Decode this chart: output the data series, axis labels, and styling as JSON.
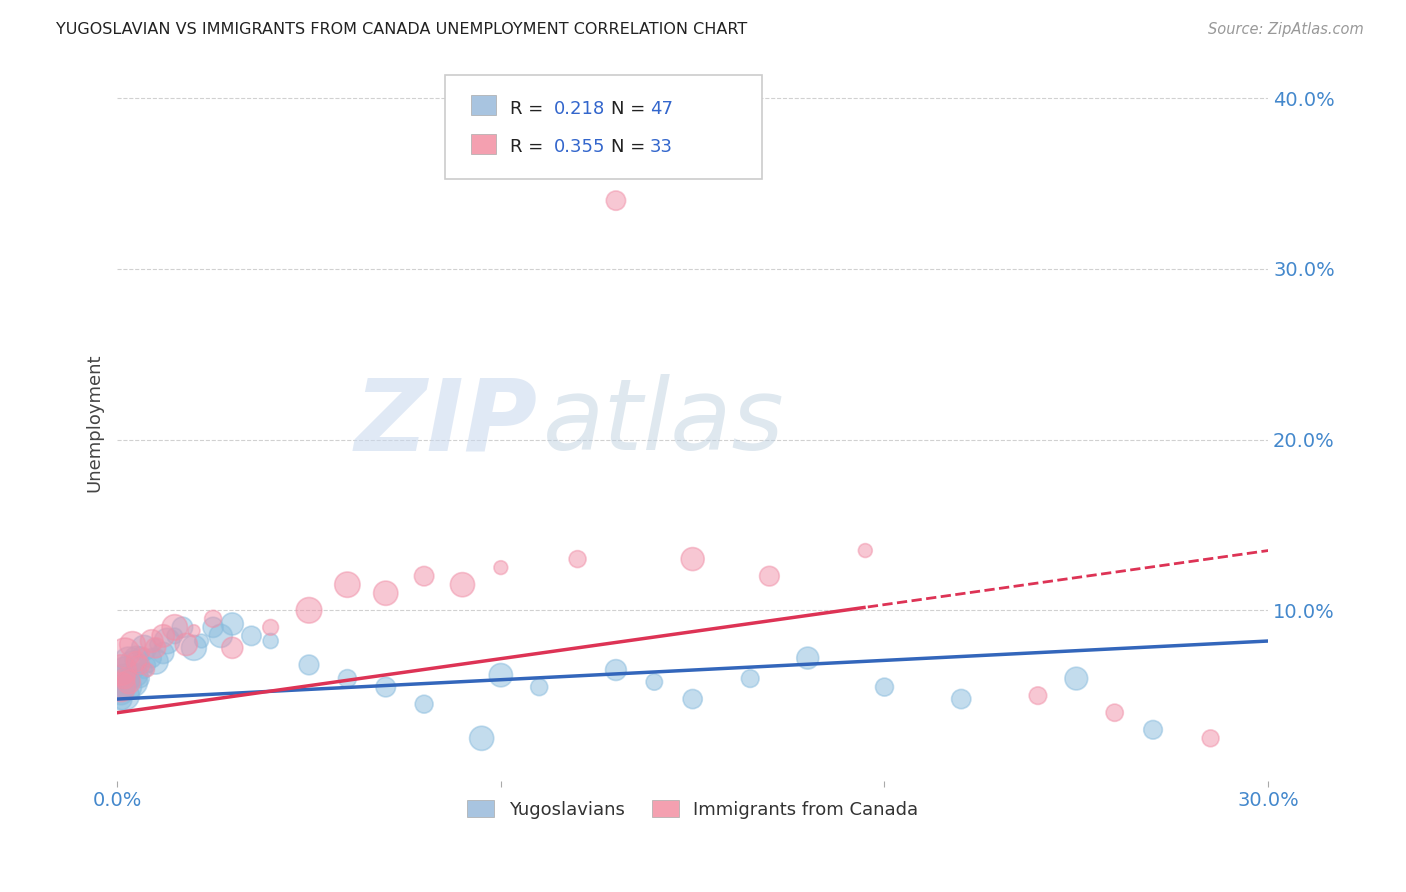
{
  "title": "YUGOSLAVIAN VS IMMIGRANTS FROM CANADA UNEMPLOYMENT CORRELATION CHART",
  "source": "Source: ZipAtlas.com",
  "xlim": [
    0.0,
    0.3
  ],
  "ylim": [
    0.0,
    0.42
  ],
  "watermark_zip": "ZIP",
  "watermark_atlas": "atlas",
  "legend_entries": [
    {
      "color": "#a8c4e0",
      "R": "0.218",
      "N": "47"
    },
    {
      "color": "#f4a0b0",
      "R": "0.355",
      "N": "33"
    }
  ],
  "legend_labels": [
    "Yugoslavians",
    "Immigrants from Canada"
  ],
  "blue_scatter_color": "#88bbdd",
  "pink_scatter_color": "#f090a8",
  "blue_line_color": "#3366bb",
  "pink_line_color": "#dd3355",
  "axis_color": "#4488cc",
  "grid_color": "#cccccc",
  "title_color": "#222222",
  "source_color": "#999999",
  "ylabel_color": "#444444",
  "R_N_color": "#3366cc",
  "pink_cutoff": 0.195,
  "yug_x": [
    0.001,
    0.001,
    0.001,
    0.002,
    0.002,
    0.002,
    0.003,
    0.003,
    0.004,
    0.004,
    0.005,
    0.005,
    0.006,
    0.006,
    0.007,
    0.007,
    0.008,
    0.009,
    0.01,
    0.01,
    0.012,
    0.013,
    0.015,
    0.017,
    0.02,
    0.022,
    0.025,
    0.027,
    0.03,
    0.035,
    0.04,
    0.05,
    0.06,
    0.07,
    0.08,
    0.095,
    0.1,
    0.11,
    0.13,
    0.14,
    0.15,
    0.165,
    0.18,
    0.2,
    0.22,
    0.25,
    0.27
  ],
  "yug_y": [
    0.048,
    0.052,
    0.055,
    0.05,
    0.06,
    0.065,
    0.055,
    0.07,
    0.058,
    0.068,
    0.062,
    0.072,
    0.06,
    0.075,
    0.065,
    0.078,
    0.068,
    0.072,
    0.07,
    0.08,
    0.075,
    0.082,
    0.085,
    0.09,
    0.078,
    0.082,
    0.09,
    0.085,
    0.092,
    0.085,
    0.082,
    0.068,
    0.06,
    0.055,
    0.045,
    0.025,
    0.062,
    0.055,
    0.065,
    0.058,
    0.048,
    0.06,
    0.072,
    0.055,
    0.048,
    0.06,
    0.03
  ],
  "imm_x": [
    0.001,
    0.001,
    0.002,
    0.002,
    0.003,
    0.004,
    0.005,
    0.006,
    0.007,
    0.008,
    0.009,
    0.01,
    0.012,
    0.015,
    0.018,
    0.02,
    0.025,
    0.03,
    0.04,
    0.05,
    0.06,
    0.07,
    0.08,
    0.09,
    0.1,
    0.12,
    0.13,
    0.15,
    0.17,
    0.195,
    0.24,
    0.26,
    0.285
  ],
  "imm_y": [
    0.055,
    0.065,
    0.06,
    0.075,
    0.058,
    0.08,
    0.07,
    0.068,
    0.075,
    0.065,
    0.082,
    0.078,
    0.085,
    0.09,
    0.08,
    0.088,
    0.095,
    0.078,
    0.09,
    0.1,
    0.115,
    0.11,
    0.12,
    0.115,
    0.125,
    0.13,
    0.34,
    0.13,
    0.12,
    0.135,
    0.05,
    0.04,
    0.025
  ]
}
